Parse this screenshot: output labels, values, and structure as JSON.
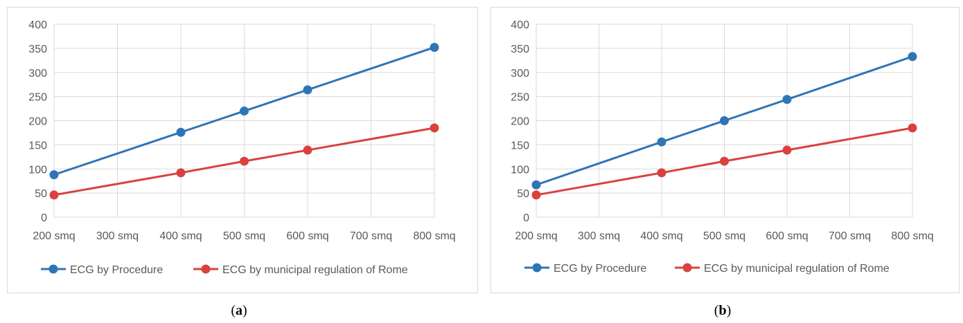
{
  "chart_data": [
    {
      "type": "line",
      "caption": "a",
      "x": [
        "200 smq",
        "300 smq",
        "400 smq",
        "500 smq",
        "600 smq",
        "700 smq",
        "800 smq"
      ],
      "ylim": [
        0,
        400
      ],
      "yticks": [
        0,
        50,
        100,
        150,
        200,
        250,
        300,
        350,
        400
      ],
      "grid": true,
      "legend": "bottom",
      "series": [
        {
          "name": "ECG by Procedure",
          "color": "#2e75b6",
          "points": [
            [
              "200 smq",
              88
            ],
            [
              "400 smq",
              176
            ],
            [
              "500 smq",
              220
            ],
            [
              "600 smq",
              264
            ],
            [
              "800 smq",
              352
            ]
          ]
        },
        {
          "name": "ECG by municipal regulation of Rome",
          "color": "#d9413f",
          "points": [
            [
              "200 smq",
              46
            ],
            [
              "400 smq",
              92
            ],
            [
              "500 smq",
              116
            ],
            [
              "600 smq",
              139
            ],
            [
              "800 smq",
              185
            ]
          ]
        }
      ]
    },
    {
      "type": "line",
      "caption": "b",
      "x": [
        "200 smq",
        "300 smq",
        "400 smq",
        "500 smq",
        "600 smq",
        "700 smq",
        "800 smq"
      ],
      "ylim": [
        0,
        400
      ],
      "yticks": [
        0,
        50,
        100,
        150,
        200,
        250,
        300,
        350,
        400
      ],
      "grid": true,
      "legend": "bottom",
      "series": [
        {
          "name": "ECG by Procedure",
          "color": "#2e75b6",
          "points": [
            [
              "200 smq",
              67
            ],
            [
              "400 smq",
              156
            ],
            [
              "500 smq",
              200
            ],
            [
              "600 smq",
              244
            ],
            [
              "800 smq",
              333
            ]
          ]
        },
        {
          "name": "ECG by municipal regulation of Rome",
          "color": "#d9413f",
          "points": [
            [
              "200 smq",
              46
            ],
            [
              "400 smq",
              92
            ],
            [
              "500 smq",
              116
            ],
            [
              "600 smq",
              139
            ],
            [
              "800 smq",
              185
            ]
          ]
        }
      ]
    }
  ]
}
